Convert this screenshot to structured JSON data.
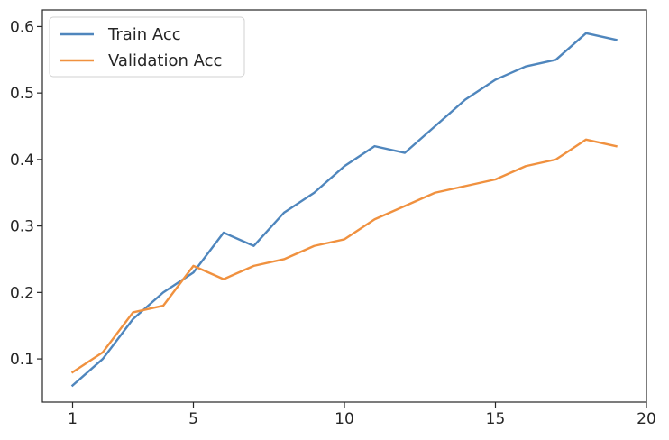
{
  "chart_data": {
    "type": "line",
    "title": "",
    "xlabel": "",
    "ylabel": "",
    "xlim": [
      0,
      20
    ],
    "ylim": [
      0.035,
      0.625
    ],
    "xticks": [
      1,
      5,
      10,
      15,
      20
    ],
    "yticks": [
      0.1,
      0.2,
      0.3,
      0.4,
      0.5,
      0.6
    ],
    "grid": false,
    "legend_position": "upper-left",
    "series": [
      {
        "name": "Train Acc",
        "color": "#4f86bd",
        "x": [
          1,
          2,
          3,
          4,
          5,
          6,
          7,
          8,
          9,
          10,
          11,
          12,
          13,
          14,
          15,
          16,
          17,
          18,
          19
        ],
        "y": [
          0.06,
          0.1,
          0.16,
          0.2,
          0.23,
          0.29,
          0.27,
          0.32,
          0.35,
          0.39,
          0.42,
          0.41,
          0.45,
          0.49,
          0.52,
          0.54,
          0.55,
          0.59,
          0.58
        ]
      },
      {
        "name": "Validation Acc",
        "color": "#f0913f",
        "x": [
          1,
          2,
          3,
          4,
          5,
          6,
          7,
          8,
          9,
          10,
          11,
          12,
          13,
          14,
          15,
          16,
          17,
          18,
          19
        ],
        "y": [
          0.08,
          0.11,
          0.17,
          0.18,
          0.24,
          0.22,
          0.24,
          0.25,
          0.27,
          0.28,
          0.31,
          0.33,
          0.35,
          0.36,
          0.37,
          0.39,
          0.4,
          0.43,
          0.42
        ]
      }
    ]
  }
}
